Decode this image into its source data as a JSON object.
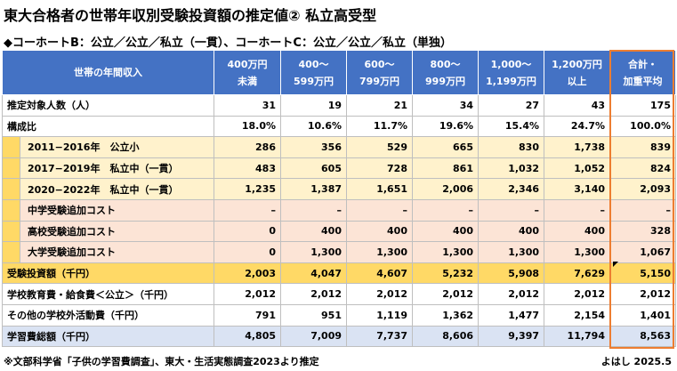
{
  "title": "東大合格者の世帯年収別受験投資額の推定値② 私立高受型",
  "subtitle": "◆コーホートB：公立／公立／私立（一貫）、コーホートC：公立／公立／私立（単独）",
  "header": {
    "label": "世帯の年間収入",
    "cols": [
      {
        "l1": "400万円",
        "l2": "未満"
      },
      {
        "l1": "400～",
        "l2": "599万円"
      },
      {
        "l1": "600～",
        "l2": "799万円"
      },
      {
        "l1": "800～",
        "l2": "999万円"
      },
      {
        "l1": "1,000～",
        "l2": "1,199万円"
      },
      {
        "l1": "1,200万円",
        "l2": "以上"
      },
      {
        "l1": "合計・",
        "l2": "加重平均"
      }
    ]
  },
  "rows": {
    "r0": {
      "label": "推定対象人数（人）",
      "values": [
        "31",
        "19",
        "21",
        "34",
        "27",
        "43",
        "175"
      ]
    },
    "r1": {
      "label": "構成比",
      "values": [
        "18.0%",
        "10.6%",
        "11.7%",
        "19.6%",
        "15.4%",
        "24.7%",
        "100.0%"
      ]
    },
    "r2": {
      "label": "2011−2016年　公立小",
      "values": [
        "286",
        "356",
        "529",
        "665",
        "830",
        "1,738",
        "839"
      ]
    },
    "r3": {
      "label": "2017−2019年　私立中（一貫）",
      "values": [
        "483",
        "605",
        "728",
        "861",
        "1,032",
        "1,052",
        "824"
      ]
    },
    "r4": {
      "label": "2020−2022年　私立中（一貫）",
      "values": [
        "1,235",
        "1,387",
        "1,651",
        "2,006",
        "2,346",
        "3,140",
        "2,093"
      ]
    },
    "r5": {
      "label": "中学受験追加コスト",
      "values": [
        "–",
        "–",
        "–",
        "–",
        "–",
        "–",
        "–"
      ]
    },
    "r6": {
      "label": "高校受験追加コスト",
      "values": [
        "0",
        "400",
        "400",
        "400",
        "400",
        "400",
        "328"
      ]
    },
    "r7": {
      "label": "大学受験追加コスト",
      "values": [
        "0",
        "1,300",
        "1,300",
        "1,300",
        "1,300",
        "1,300",
        "1,067"
      ]
    },
    "r8": {
      "label": "受験投資額（千円）",
      "values": [
        "2,003",
        "4,047",
        "4,607",
        "5,232",
        "5,908",
        "7,629",
        "5,150"
      ]
    },
    "r9": {
      "label": "学校教育費・給食費＜公立＞（千円）",
      "values": [
        "2,012",
        "2,012",
        "2,012",
        "2,012",
        "2,012",
        "2,012",
        "2,012"
      ]
    },
    "r10": {
      "label": "その他の学校外活動費（千円）",
      "values": [
        "791",
        "951",
        "1,119",
        "1,362",
        "1,477",
        "2,154",
        "1,401"
      ]
    },
    "r11": {
      "label": "学習費総額（千円）",
      "values": [
        "4,805",
        "7,009",
        "7,737",
        "8,606",
        "9,397",
        "11,794",
        "8,563"
      ]
    }
  },
  "footnote": "※文部科学省「子供の学習費調査」、東大・生活実態調査2023より推定",
  "credit": "よはし 2025.5",
  "colors": {
    "header": "#4472c4",
    "yellow": "#fff2cc",
    "pink": "#fce4d6",
    "gold": "#ffd966",
    "blue": "#dae3f3",
    "highlight": "#ed7d31"
  }
}
